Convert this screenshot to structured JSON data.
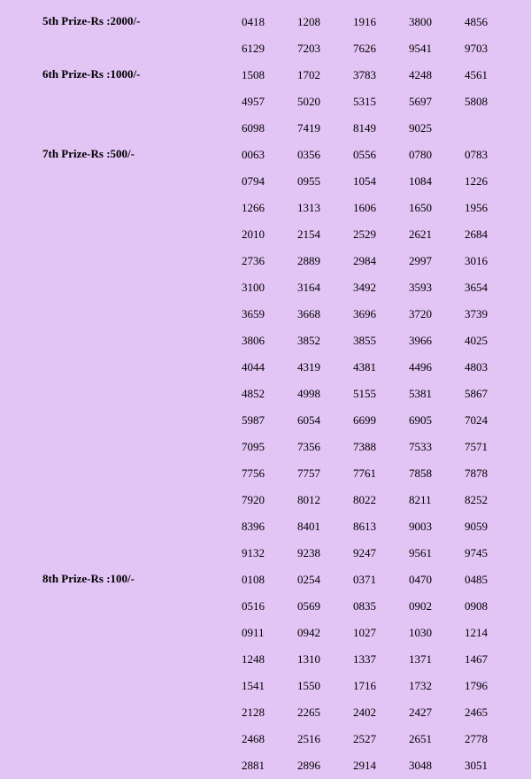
{
  "background_color": "#e2c4f5",
  "text_color": "#000000",
  "font_family": "Times New Roman",
  "label_fontsize": 13,
  "label_fontweight": "bold",
  "number_fontsize": 13,
  "columns_per_row": 5,
  "sections": [
    {
      "label": "5th Prize-Rs :2000/-",
      "numbers": [
        "0418",
        "1208",
        "1916",
        "3800",
        "4856",
        "6129",
        "7203",
        "7626",
        "9541",
        "9703"
      ]
    },
    {
      "label": "6th Prize-Rs :1000/-",
      "numbers": [
        "1508",
        "1702",
        "3783",
        "4248",
        "4561",
        "4957",
        "5020",
        "5315",
        "5697",
        "5808",
        "6098",
        "7419",
        "8149",
        "9025"
      ]
    },
    {
      "label": "7th Prize-Rs :500/-",
      "numbers": [
        "0063",
        "0356",
        "0556",
        "0780",
        "0783",
        "0794",
        "0955",
        "1054",
        "1084",
        "1226",
        "1266",
        "1313",
        "1606",
        "1650",
        "1956",
        "2010",
        "2154",
        "2529",
        "2621",
        "2684",
        "2736",
        "2889",
        "2984",
        "2997",
        "3016",
        "3100",
        "3164",
        "3492",
        "3593",
        "3654",
        "3659",
        "3668",
        "3696",
        "3720",
        "3739",
        "3806",
        "3852",
        "3855",
        "3966",
        "4025",
        "4044",
        "4319",
        "4381",
        "4496",
        "4803",
        "4852",
        "4998",
        "5155",
        "5381",
        "5867",
        "5987",
        "6054",
        "6699",
        "6905",
        "7024",
        "7095",
        "7356",
        "7388",
        "7533",
        "7571",
        "7756",
        "7757",
        "7761",
        "7858",
        "7878",
        "7920",
        "8012",
        "8022",
        "8211",
        "8252",
        "8396",
        "8401",
        "8613",
        "9003",
        "9059",
        "9132",
        "9238",
        "9247",
        "9561",
        "9745"
      ]
    },
    {
      "label": "8th Prize-Rs :100/-",
      "numbers": [
        "0108",
        "0254",
        "0371",
        "0470",
        "0485",
        "0516",
        "0569",
        "0835",
        "0902",
        "0908",
        "0911",
        "0942",
        "1027",
        "1030",
        "1214",
        "1248",
        "1310",
        "1337",
        "1371",
        "1467",
        "1541",
        "1550",
        "1716",
        "1732",
        "1796",
        "2128",
        "2265",
        "2402",
        "2427",
        "2465",
        "2468",
        "2516",
        "2527",
        "2651",
        "2778",
        "2881",
        "2896",
        "2914",
        "3048",
        "3051"
      ]
    }
  ]
}
